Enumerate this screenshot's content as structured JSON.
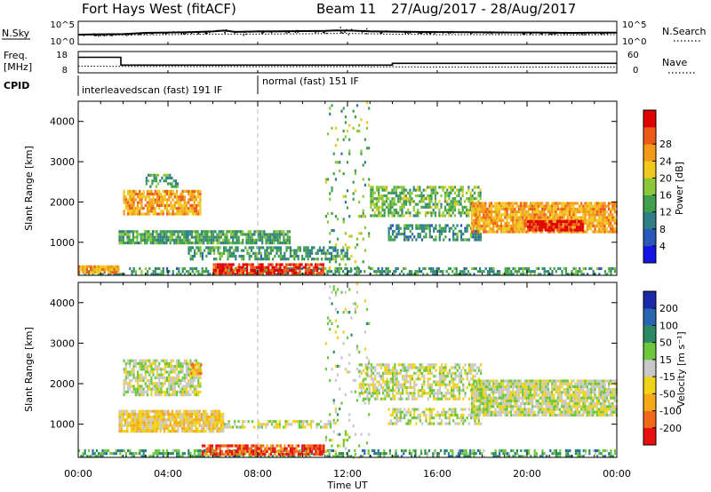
{
  "header": {
    "title": "Fort Hays West (fitACF)",
    "beam": "Beam 11",
    "date_range": "27/Aug/2017 - 28/Aug/2017"
  },
  "colors": {
    "black": "#000000",
    "grid": "#bbbbbb",
    "power_scale": [
      "#1414e6",
      "#2a58b8",
      "#2f7f87",
      "#3f9f4c",
      "#8cc83a",
      "#f0c81e",
      "#f59a16",
      "#ee5a18",
      "#e00000"
    ],
    "velocity_scale": [
      "#1a2aa8",
      "#2a66b0",
      "#2b8a62",
      "#6cc83a",
      "#c8c8c8",
      "#f0d218",
      "#f5a818",
      "#f06818",
      "#e81010"
    ]
  },
  "chart_data": [
    {
      "id": "nsky-nsearch",
      "type": "line",
      "left_label": "N.Sky",
      "right_label": "N.Search",
      "left_ticks": [
        "10^5",
        "10^0"
      ],
      "right_ticks": [
        "10^5",
        "10^0"
      ],
      "y_scale": "log",
      "ylim": [
        1,
        100000
      ],
      "x_ticks": [
        "00:00",
        "04:00",
        "08:00",
        "12:00",
        "16:00",
        "20:00",
        "00:00"
      ],
      "series": [
        {
          "name": "N.Sky",
          "x": [
            0,
            1,
            2,
            3,
            4,
            5,
            6,
            6.5,
            7,
            7.5,
            8,
            9,
            10,
            11,
            11.5,
            12,
            12.5,
            13,
            14,
            15,
            16,
            17,
            18,
            19,
            20,
            21,
            22,
            23,
            24
          ],
          "y": [
            150,
            180,
            200,
            400,
            500,
            600,
            900,
            1500,
            700,
            800,
            900,
            1000,
            1100,
            1200,
            1600,
            1500,
            1300,
            1000,
            800,
            700,
            650,
            600,
            550,
            500,
            500,
            450,
            400,
            450,
            480
          ]
        },
        {
          "name": "N.Search",
          "x": [
            0,
            2,
            4,
            6,
            8,
            10,
            12,
            14,
            16,
            18,
            20,
            22,
            24
          ],
          "y": [
            120,
            120,
            150,
            200,
            200,
            250,
            300,
            200,
            150,
            150,
            140,
            130,
            150
          ]
        }
      ]
    },
    {
      "id": "freq-nave",
      "type": "line",
      "left_label": "Freq. [MHz]",
      "right_label": "Nave",
      "left_ticks": [
        "18",
        "8"
      ],
      "right_ticks": [
        "60",
        "0"
      ],
      "ylim": [
        8,
        18
      ],
      "y2lim": [
        0,
        60
      ],
      "x_ticks": [
        "00:00",
        "04:00",
        "08:00",
        "12:00",
        "16:00",
        "20:00",
        "00:00"
      ],
      "series": [
        {
          "name": "Freq.",
          "x": [
            0,
            1.9,
            1.9,
            14,
            14,
            24
          ],
          "y": [
            15.5,
            15.5,
            11.5,
            11.5,
            12.4,
            12.4
          ]
        },
        {
          "name": "Nave",
          "x": [
            0,
            2,
            8,
            12,
            16,
            20,
            24
          ],
          "y": [
            18,
            17,
            16,
            16,
            15,
            15,
            15
          ]
        }
      ]
    },
    {
      "id": "cpid",
      "type": "table",
      "label": "CPID",
      "segments": [
        {
          "start_hr": 0,
          "end_hr": 8,
          "text": "interleavedscan (fast) 191 IF"
        },
        {
          "start_hr": 8,
          "end_hr": 24,
          "text": "normal (fast) 151 IF"
        }
      ]
    },
    {
      "id": "power",
      "type": "heatmap",
      "ylabel": "Slant Range [km]",
      "y_ticks": [
        "1000",
        "2000",
        "3000",
        "4000"
      ],
      "ylim": [
        180,
        4500
      ],
      "xlim": [
        0,
        24
      ],
      "x_ticks": [
        "00:00",
        "04:00",
        "08:00",
        "12:00",
        "16:00",
        "20:00",
        "00:00"
      ],
      "colorbar_label": "Power [dB]",
      "colorbar_ticks": [
        "4",
        "8",
        "12",
        "16",
        "20",
        "24",
        "28"
      ],
      "colorbar_range": [
        0,
        30
      ],
      "features": [
        {
          "t0": 0.0,
          "t1": 24.0,
          "r0": 200,
          "r1": 380,
          "level": 0.35,
          "density": 0.55
        },
        {
          "t0": 0.0,
          "t1": 1.8,
          "r0": 250,
          "r1": 430,
          "level": 0.7,
          "density": 0.95
        },
        {
          "t0": 6.0,
          "t1": 11.0,
          "r0": 220,
          "r1": 480,
          "level": 0.9,
          "density": 0.85
        },
        {
          "t0": 1.8,
          "t1": 9.5,
          "r0": 950,
          "r1": 1300,
          "level": 0.38,
          "density": 0.85
        },
        {
          "t0": 4.8,
          "t1": 12.0,
          "r0": 550,
          "r1": 900,
          "level": 0.35,
          "density": 0.6
        },
        {
          "t0": 2.0,
          "t1": 5.5,
          "r0": 1700,
          "r1": 2300,
          "level": 0.7,
          "density": 0.8
        },
        {
          "t0": 3.0,
          "t1": 4.5,
          "r0": 2350,
          "r1": 2700,
          "level": 0.4,
          "density": 0.5
        },
        {
          "t0": 13.0,
          "t1": 18.0,
          "r0": 1600,
          "r1": 2400,
          "level": 0.45,
          "density": 0.6
        },
        {
          "t0": 13.8,
          "t1": 18.0,
          "r0": 1050,
          "r1": 1450,
          "level": 0.32,
          "density": 0.55
        },
        {
          "t0": 17.5,
          "t1": 24.0,
          "r0": 1200,
          "r1": 2000,
          "level": 0.7,
          "density": 0.9
        },
        {
          "t0": 20.0,
          "t1": 22.5,
          "r0": 1250,
          "r1": 1550,
          "level": 0.95,
          "density": 0.9
        },
        {
          "t0": 11.0,
          "t1": 13.0,
          "r0": 180,
          "r1": 4500,
          "level": 0.45,
          "density": 0.1
        }
      ]
    },
    {
      "id": "velocity",
      "type": "heatmap",
      "ylabel": "Slant Range [km]",
      "y_ticks": [
        "1000",
        "2000",
        "3000",
        "4000"
      ],
      "ylim": [
        180,
        4500
      ],
      "xlim": [
        0,
        24
      ],
      "xlabel": "Time UT",
      "x_ticks": [
        "00:00",
        "04:00",
        "08:00",
        "12:00",
        "16:00",
        "20:00",
        "00:00"
      ],
      "colorbar_label": "Velocity [m s⁻¹]",
      "colorbar_ticks": [
        "200",
        "100",
        "50",
        "15",
        "-15",
        "-50",
        "-100",
        "-200"
      ],
      "colorbar_range": [
        200,
        -200
      ],
      "features": [
        {
          "t0": 0.0,
          "t1": 24.0,
          "r0": 200,
          "r1": 380,
          "level": 0.32,
          "density": 0.55
        },
        {
          "t0": 5.5,
          "t1": 11.0,
          "r0": 200,
          "r1": 500,
          "level": 0.88,
          "density": 0.8
        },
        {
          "t0": 1.8,
          "t1": 6.5,
          "r0": 800,
          "r1": 1350,
          "level": 0.62,
          "density": 0.9
        },
        {
          "t0": 6.5,
          "t1": 11.5,
          "r0": 900,
          "r1": 1100,
          "level": 0.5,
          "density": 0.55
        },
        {
          "t0": 2.0,
          "t1": 5.5,
          "r0": 1700,
          "r1": 2600,
          "level": 0.5,
          "density": 0.75
        },
        {
          "t0": 5.0,
          "t1": 5.5,
          "r0": 2250,
          "r1": 2500,
          "level": 0.72,
          "density": 0.8
        },
        {
          "t0": 12.5,
          "t1": 18.0,
          "r0": 1600,
          "r1": 2500,
          "level": 0.5,
          "density": 0.6
        },
        {
          "t0": 13.8,
          "t1": 18.0,
          "r0": 950,
          "r1": 1400,
          "level": 0.5,
          "density": 0.55
        },
        {
          "t0": 17.5,
          "t1": 24.0,
          "r0": 1200,
          "r1": 2100,
          "level": 0.5,
          "density": 0.88
        },
        {
          "t0": 11.0,
          "t1": 13.0,
          "r0": 180,
          "r1": 4500,
          "level": 0.45,
          "density": 0.1
        }
      ]
    }
  ]
}
